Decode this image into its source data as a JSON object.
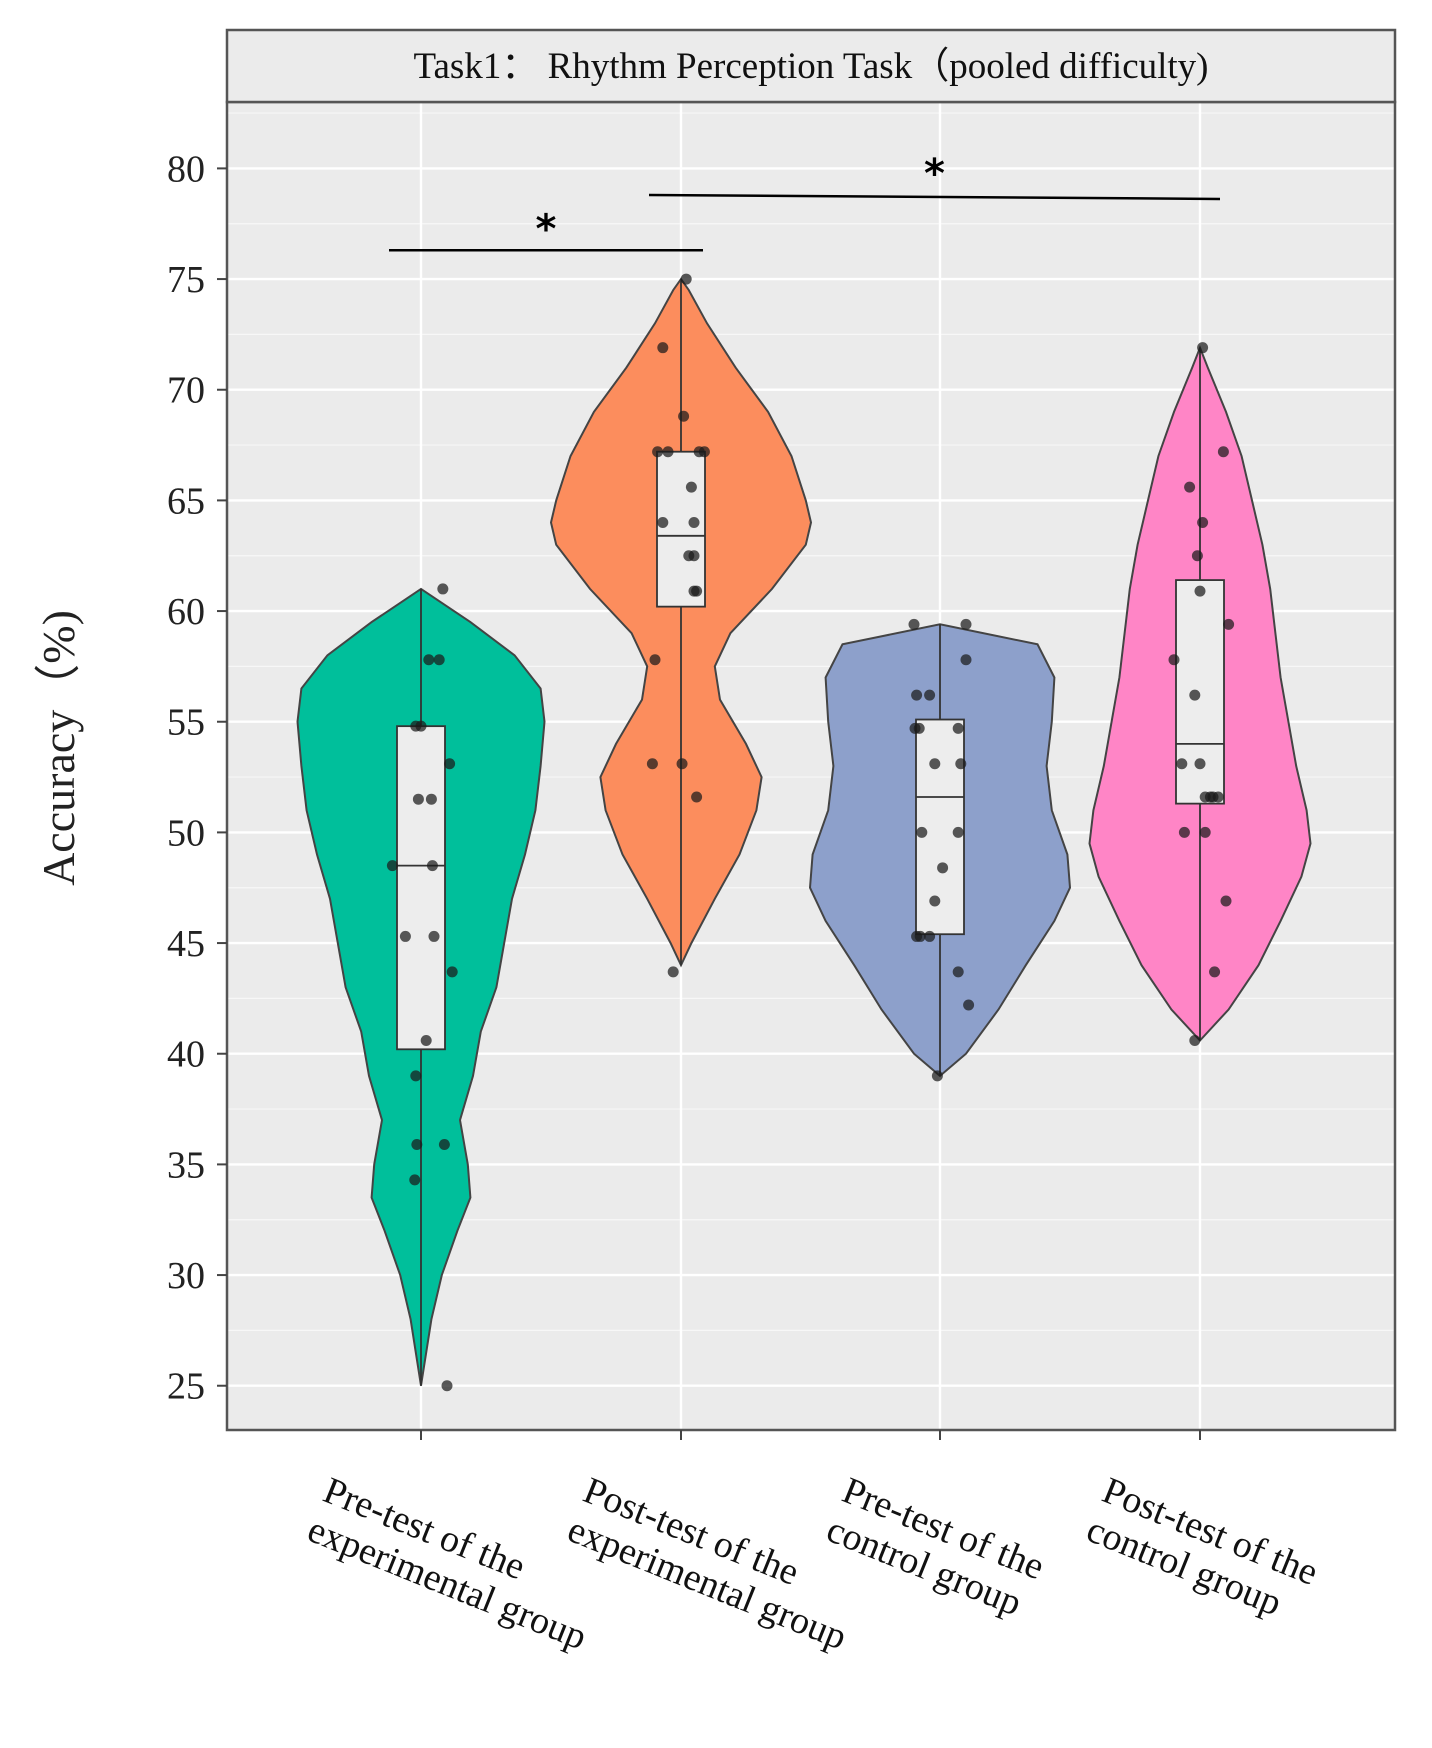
{
  "chart_data": {
    "type": "violin",
    "title": "Task1： Rhythm Perception Task（pooled difficulty)",
    "ylabel": "Accuracy（%)",
    "xlabel": "",
    "ylim": [
      23,
      83
    ],
    "yticks": [
      25,
      30,
      35,
      40,
      45,
      50,
      55,
      60,
      65,
      70,
      75,
      80
    ],
    "grid": true,
    "panel_color": "#ebebeb",
    "categories": [
      [
        "Pre-test of the",
        "experimental group"
      ],
      [
        "Post-test of the",
        "experimental group"
      ],
      [
        "Pre-test of the",
        "control group"
      ],
      [
        "Post-test of the",
        "control group"
      ]
    ],
    "series": [
      {
        "name": "Pre-test of the experimental group",
        "color": "#00bf9b",
        "violin_min": 25,
        "violin_max": 61,
        "density": [
          [
            25,
            0.0
          ],
          [
            28,
            0.08
          ],
          [
            30,
            0.16
          ],
          [
            32,
            0.28
          ],
          [
            33.5,
            0.38
          ],
          [
            35,
            0.36
          ],
          [
            37,
            0.3
          ],
          [
            39,
            0.4
          ],
          [
            41,
            0.46
          ],
          [
            43,
            0.58
          ],
          [
            45,
            0.64
          ],
          [
            47,
            0.7
          ],
          [
            49,
            0.8
          ],
          [
            51,
            0.88
          ],
          [
            53,
            0.92
          ],
          [
            55,
            0.95
          ],
          [
            56.5,
            0.92
          ],
          [
            58,
            0.72
          ],
          [
            59.5,
            0.38
          ],
          [
            61,
            0.0
          ]
        ],
        "box": {
          "q1": 40.2,
          "median": 48.5,
          "q3": 54.8
        },
        "points": [
          [
            -0.55,
            48.5
          ],
          [
            -0.3,
            45.3
          ],
          [
            -0.1,
            54.8
          ],
          [
            0.0,
            54.8
          ],
          [
            0.2,
            51.5
          ],
          [
            0.22,
            48.5
          ],
          [
            0.25,
            45.3
          ],
          [
            0.35,
            57.8
          ],
          [
            0.15,
            57.8
          ],
          [
            -0.05,
            51.5
          ],
          [
            0.55,
            53.1
          ],
          [
            0.6,
            43.7
          ],
          [
            0.42,
            61.0
          ],
          [
            0.1,
            40.6
          ],
          [
            -0.1,
            39.0
          ],
          [
            -0.08,
            35.9
          ],
          [
            0.45,
            35.9
          ],
          [
            -0.12,
            34.3
          ],
          [
            0.5,
            25.0
          ]
        ]
      },
      {
        "name": "Post-test of the experimental group",
        "color": "#fc8d5d",
        "violin_min": 44,
        "violin_max": 75,
        "density": [
          [
            44,
            0.0
          ],
          [
            45,
            0.08
          ],
          [
            47,
            0.26
          ],
          [
            49,
            0.45
          ],
          [
            51,
            0.58
          ],
          [
            52.5,
            0.62
          ],
          [
            54,
            0.5
          ],
          [
            56,
            0.3
          ],
          [
            57.5,
            0.26
          ],
          [
            59,
            0.38
          ],
          [
            61,
            0.7
          ],
          [
            63,
            0.96
          ],
          [
            64,
            1.0
          ],
          [
            65,
            0.96
          ],
          [
            67,
            0.85
          ],
          [
            69,
            0.67
          ],
          [
            71,
            0.42
          ],
          [
            73,
            0.2
          ],
          [
            74.5,
            0.06
          ],
          [
            75,
            0.0
          ]
        ],
        "box": {
          "q1": 60.2,
          "median": 63.4,
          "q3": 67.2
        },
        "points": [
          [
            0.1,
            75.0
          ],
          [
            -0.35,
            71.9
          ],
          [
            0.05,
            68.8
          ],
          [
            -0.45,
            67.2
          ],
          [
            -0.25,
            67.2
          ],
          [
            0.35,
            67.2
          ],
          [
            0.45,
            67.2
          ],
          [
            0.2,
            65.6
          ],
          [
            -0.35,
            64.0
          ],
          [
            0.25,
            64.0
          ],
          [
            0.15,
            62.5
          ],
          [
            0.25,
            62.5
          ],
          [
            0.25,
            60.9
          ],
          [
            0.3,
            60.9
          ],
          [
            -0.5,
            57.8
          ],
          [
            -0.55,
            53.1
          ],
          [
            0.02,
            53.1
          ],
          [
            0.3,
            51.6
          ],
          [
            -0.15,
            43.7
          ]
        ]
      },
      {
        "name": "Pre-test of the control group",
        "color": "#8da0cb",
        "violin_min": 39,
        "violin_max": 59.4,
        "density": [
          [
            39,
            0.0
          ],
          [
            40,
            0.2
          ],
          [
            42,
            0.45
          ],
          [
            44,
            0.66
          ],
          [
            46,
            0.88
          ],
          [
            47.5,
            1.0
          ],
          [
            49,
            0.98
          ],
          [
            51,
            0.86
          ],
          [
            53,
            0.82
          ],
          [
            55,
            0.86
          ],
          [
            57,
            0.88
          ],
          [
            58.5,
            0.75
          ],
          [
            59.4,
            0.0
          ]
        ],
        "box": {
          "q1": 45.4,
          "median": 51.6,
          "q3": 55.1
        },
        "points": [
          [
            -0.5,
            59.4
          ],
          [
            0.5,
            59.4
          ],
          [
            0.5,
            57.8
          ],
          [
            -0.45,
            56.2
          ],
          [
            -0.2,
            56.2
          ],
          [
            -0.48,
            54.7
          ],
          [
            -0.4,
            54.7
          ],
          [
            0.35,
            54.7
          ],
          [
            -0.1,
            53.1
          ],
          [
            0.4,
            53.1
          ],
          [
            -0.35,
            50.0
          ],
          [
            0.35,
            50.0
          ],
          [
            0.05,
            48.4
          ],
          [
            -0.1,
            46.9
          ],
          [
            -0.45,
            45.3
          ],
          [
            -0.38,
            45.3
          ],
          [
            -0.2,
            45.3
          ],
          [
            0.35,
            43.7
          ],
          [
            0.55,
            42.2
          ],
          [
            -0.05,
            39.0
          ]
        ]
      },
      {
        "name": "Post-test of the control group",
        "color": "#ff85c6",
        "violin_min": 40.6,
        "violin_max": 71.9,
        "density": [
          [
            40.6,
            0.0
          ],
          [
            42,
            0.22
          ],
          [
            44,
            0.45
          ],
          [
            46,
            0.62
          ],
          [
            48,
            0.78
          ],
          [
            49.5,
            0.85
          ],
          [
            51,
            0.82
          ],
          [
            53,
            0.74
          ],
          [
            55,
            0.68
          ],
          [
            57,
            0.62
          ],
          [
            59,
            0.58
          ],
          [
            61,
            0.54
          ],
          [
            63,
            0.48
          ],
          [
            65,
            0.4
          ],
          [
            67,
            0.32
          ],
          [
            69,
            0.2
          ],
          [
            71,
            0.06
          ],
          [
            71.9,
            0.0
          ]
        ],
        "box": {
          "q1": 51.3,
          "median": 54.0,
          "q3": 61.4
        },
        "points": [
          [
            0.05,
            71.9
          ],
          [
            0.45,
            67.2
          ],
          [
            -0.2,
            65.6
          ],
          [
            0.05,
            64.0
          ],
          [
            -0.05,
            62.5
          ],
          [
            0.0,
            60.9
          ],
          [
            0.55,
            59.4
          ],
          [
            -0.5,
            57.8
          ],
          [
            -0.1,
            56.2
          ],
          [
            -0.35,
            53.1
          ],
          [
            0.0,
            53.1
          ],
          [
            0.1,
            51.6
          ],
          [
            0.2,
            51.6
          ],
          [
            0.25,
            51.6
          ],
          [
            0.35,
            51.6
          ],
          [
            -0.3,
            50.0
          ],
          [
            0.1,
            50.0
          ],
          [
            0.5,
            46.9
          ],
          [
            0.28,
            43.7
          ],
          [
            -0.1,
            40.6
          ]
        ]
      }
    ],
    "significance": [
      {
        "label": "*",
        "from": 0,
        "to": 1,
        "y": 76.3
      },
      {
        "label": "*",
        "from": 1,
        "to": 3,
        "y": 78.8
      }
    ]
  }
}
